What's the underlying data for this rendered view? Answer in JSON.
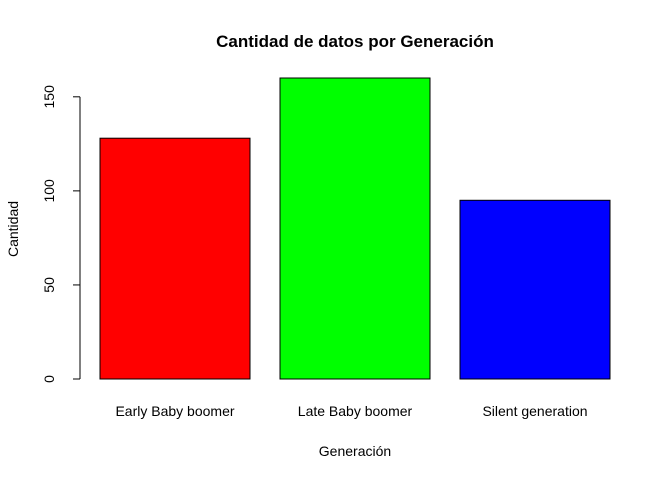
{
  "chart_data": {
    "type": "bar",
    "title": "Cantidad de datos por Generación",
    "xlabel": "Generación",
    "ylabel": "Cantidad",
    "categories": [
      "Early Baby boomer",
      "Late Baby boomer",
      "Silent generation"
    ],
    "values": [
      128,
      160,
      95
    ],
    "colors": [
      "#ff0000",
      "#00ff00",
      "#0000ff"
    ],
    "ylim": [
      0,
      160
    ],
    "yticks": [
      0,
      50,
      100,
      150
    ],
    "grid": false,
    "legend": "none"
  }
}
